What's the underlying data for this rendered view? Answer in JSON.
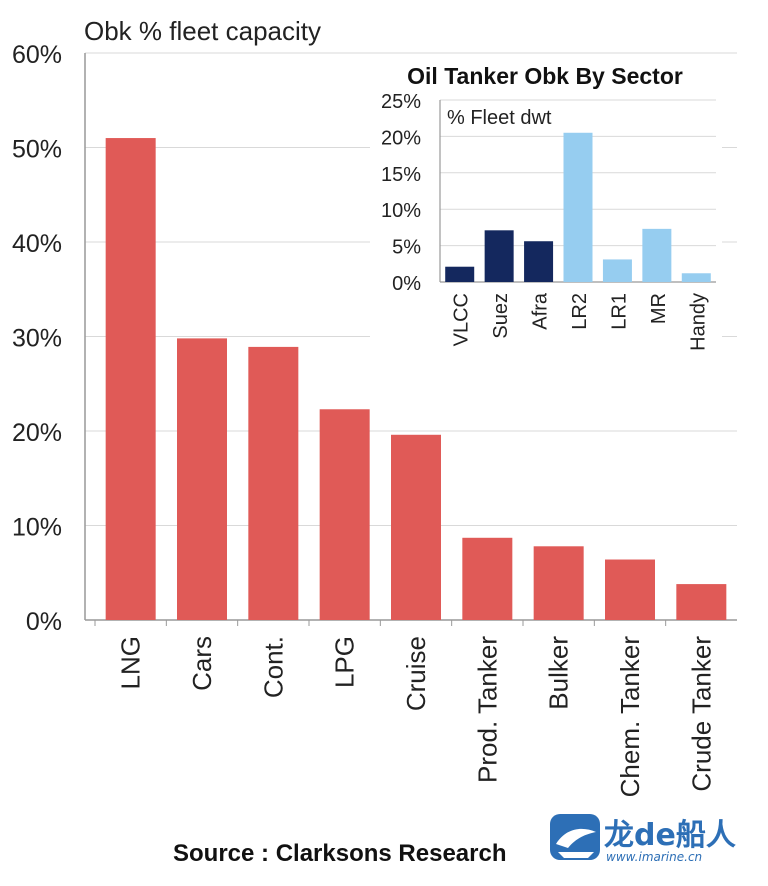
{
  "chart_data": [
    {
      "type": "bar",
      "title": "Obk % fleet capacity",
      "xlabel": "",
      "ylabel": "",
      "ylim": [
        0,
        60
      ],
      "yticks": [
        "0%",
        "10%",
        "20%",
        "30%",
        "40%",
        "50%",
        "60%"
      ],
      "categories": [
        "LNG",
        "Cars",
        "Cont.",
        "LPG",
        "Cruise",
        "Prod. Tanker",
        "Bulker",
        "Chem. Tanker",
        "Crude Tanker"
      ],
      "values": [
        51.0,
        29.8,
        28.9,
        22.3,
        19.6,
        8.7,
        7.8,
        6.4,
        3.8
      ],
      "color": "#e05a57",
      "grid": true
    },
    {
      "type": "bar",
      "title": "Oil Tanker Obk By Sector",
      "ylabel": "% Fleet dwt",
      "ylim": [
        0,
        25
      ],
      "yticks": [
        "0%",
        "5%",
        "10%",
        "15%",
        "20%",
        "25%"
      ],
      "categories": [
        "VLCC",
        "Suez",
        "Afra",
        "LR2",
        "LR1",
        "MR",
        "Handy"
      ],
      "values": [
        2.1,
        7.1,
        5.6,
        20.5,
        3.1,
        7.3,
        1.2
      ],
      "colors": [
        "#14285e",
        "#14285e",
        "#14285e",
        "#96cdf0",
        "#96cdf0",
        "#96cdf0",
        "#96cdf0"
      ],
      "grid": true
    }
  ],
  "footer": {
    "source": "Source : Clarksons Research"
  },
  "watermark": {
    "brand": "龙de船人",
    "url": "www.imarine.cn"
  }
}
